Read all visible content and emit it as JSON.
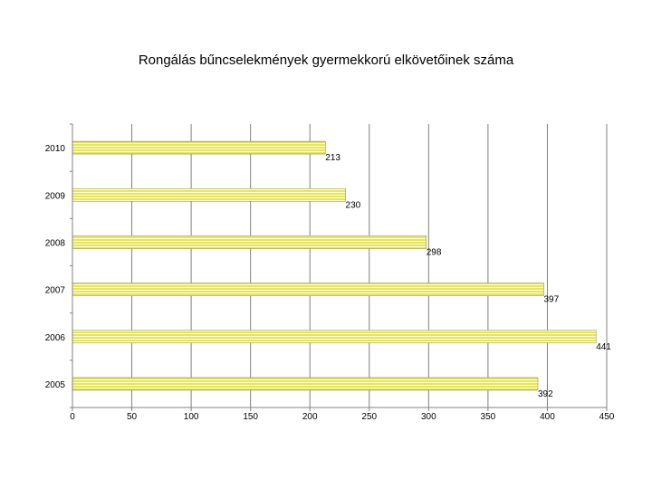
{
  "chart_data": {
    "type": "bar",
    "orientation": "horizontal",
    "title": "Rongálás bűncselekmények gyermekkorú elkövetőinek száma",
    "categories": [
      "2005",
      "2006",
      "2007",
      "2008",
      "2009",
      "2010"
    ],
    "series": [
      {
        "values": [
          392,
          441,
          397,
          298,
          230,
          213
        ]
      }
    ],
    "data_labels": [
      "392",
      "441",
      "397",
      "298",
      "230",
      "213"
    ],
    "xlim": [
      0,
      450
    ],
    "xticks": [
      "0",
      "50",
      "100",
      "150",
      "200",
      "250",
      "300",
      "350",
      "400",
      "450"
    ],
    "xlabel": "",
    "ylabel": "",
    "grid": "vertical",
    "legend": "none",
    "colors": {
      "bar_fill": "#ffffcc",
      "bar_stripe": "#c8c800",
      "bar_edge": "#9a9a3a",
      "grid": "#808080",
      "axis": "#808080"
    }
  }
}
